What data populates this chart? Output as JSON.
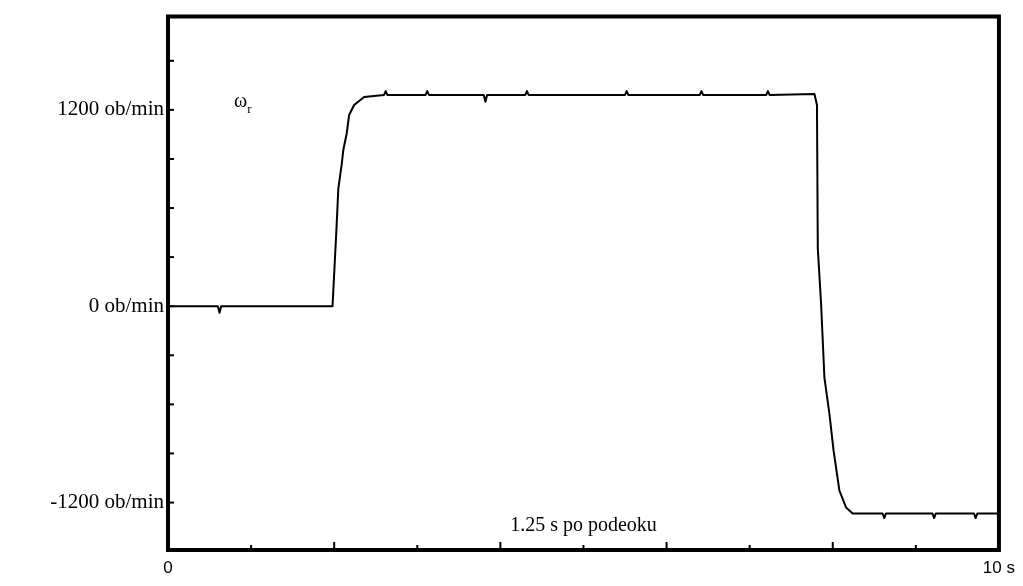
{
  "chart_data": {
    "type": "line",
    "x": [
      0,
      0.6,
      0.62,
      0.64,
      1.98,
      2.03,
      2.05,
      2.09,
      2.11,
      2.15,
      2.18,
      2.24,
      2.36,
      2.6,
      2.62,
      2.64,
      3.1,
      3.12,
      3.14,
      3.8,
      3.82,
      3.84,
      4.3,
      4.32,
      4.34,
      5.5,
      5.52,
      5.54,
      6.4,
      6.42,
      6.44,
      7.2,
      7.22,
      7.24,
      7.78,
      7.81,
      7.82,
      7.86,
      7.9,
      7.96,
      8.01,
      8.08,
      8.16,
      8.24,
      8.6,
      8.62,
      8.64,
      9.2,
      9.22,
      9.24,
      9.7,
      9.72,
      9.74,
      9.98
    ],
    "series": [
      {
        "color": "#000000",
        "values": [
          0,
          0,
          -40,
          0,
          0,
          500,
          720,
          865,
          956,
          1054,
          1169,
          1230,
          1279,
          1291,
          1315,
          1291,
          1291,
          1315,
          1291,
          1291,
          1250,
          1291,
          1291,
          1315,
          1291,
          1291,
          1315,
          1291,
          1291,
          1315,
          1291,
          1291,
          1315,
          1291,
          1297,
          1230,
          353,
          12,
          -438,
          -658,
          -883,
          -1127,
          -1230,
          -1267,
          -1267,
          -1295,
          -1267,
          -1267,
          -1295,
          -1267,
          -1267,
          -1295,
          -1267,
          -1267
        ]
      }
    ],
    "xlim": [
      0,
      10
    ],
    "ylim": [
      -1490,
      1770
    ],
    "xticks": [
      0,
      {
        "value": 1,
        "label": null
      },
      {
        "value": 2,
        "label": null
      },
      {
        "value": 3,
        "label": null
      },
      {
        "value": 4,
        "label": null
      },
      {
        "value": 5,
        "label": null
      },
      {
        "value": 6,
        "label": null
      },
      {
        "value": 7,
        "label": null
      },
      {
        "value": 8,
        "label": null
      },
      {
        "value": 9,
        "label": null
      },
      {
        "value": 10,
        "label": "10 s"
      }
    ],
    "yticks": [
      {
        "value": -1200,
        "label": "-1200 ob/min"
      },
      {
        "value": -900,
        "label": null
      },
      {
        "value": -600,
        "label": null
      },
      {
        "value": -300,
        "label": null
      },
      {
        "value": 0,
        "label": "0 ob/min"
      },
      {
        "value": 300,
        "label": null
      },
      {
        "value": 600,
        "label": null
      },
      {
        "value": 900,
        "label": null
      },
      {
        "value": 1200,
        "label": "1200 ob/min"
      },
      {
        "value": 1500,
        "label": null
      }
    ],
    "annotations": [
      "ω$_{r}$",
      "1.25 s po podeoku"
    ],
    "grid": false,
    "legend": false,
    "marker": "none",
    "line_style": "solid"
  }
}
